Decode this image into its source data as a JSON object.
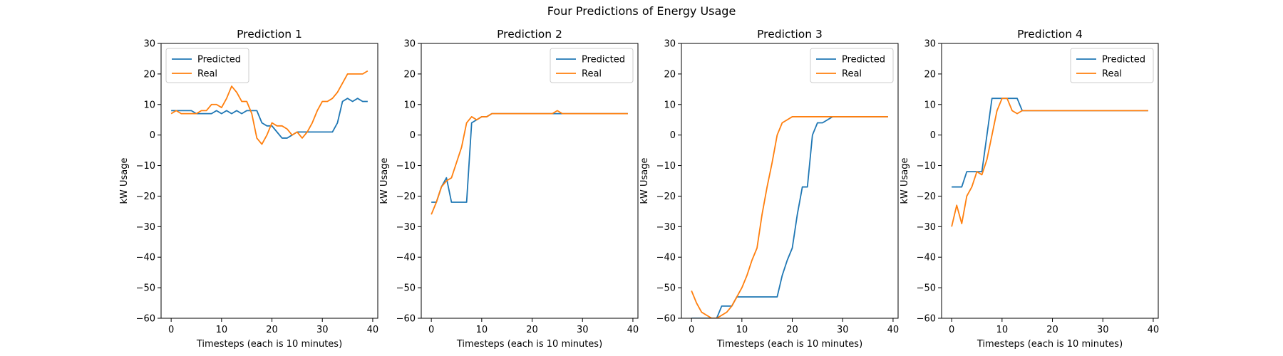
{
  "figure": {
    "title": "Four Predictions of Energy Usage"
  },
  "chart_data": [
    {
      "type": "line",
      "title": "Prediction 1",
      "xlabel": "Timesteps (each is 10 minutes)",
      "ylabel": "kW Usage",
      "xlim": [
        -2,
        41
      ],
      "ylim": [
        -60,
        30
      ],
      "xticks": [
        0,
        10,
        20,
        30,
        40
      ],
      "yticks": [
        -60,
        -50,
        -40,
        -30,
        -20,
        -10,
        0,
        10,
        20,
        30
      ],
      "legend_position": "top-left",
      "series": [
        {
          "name": "Predicted",
          "color": "#1f77b4",
          "x": [
            0,
            1,
            2,
            3,
            4,
            5,
            6,
            7,
            8,
            9,
            10,
            11,
            12,
            13,
            14,
            15,
            16,
            17,
            18,
            19,
            20,
            21,
            22,
            23,
            24,
            25,
            26,
            27,
            28,
            29,
            30,
            31,
            32,
            33,
            34,
            35,
            36,
            37,
            38,
            39
          ],
          "values": [
            8,
            8,
            8,
            8,
            8,
            7,
            7,
            7,
            7,
            8,
            7,
            8,
            7,
            8,
            7,
            8,
            8,
            8,
            4,
            3,
            3,
            1,
            -1,
            -1,
            0,
            1,
            1,
            1,
            1,
            1,
            1,
            1,
            1,
            4,
            11,
            12,
            11,
            12,
            11,
            11
          ]
        },
        {
          "name": "Real",
          "color": "#ff7f0e",
          "x": [
            0,
            1,
            2,
            3,
            4,
            5,
            6,
            7,
            8,
            9,
            10,
            11,
            12,
            13,
            14,
            15,
            16,
            17,
            18,
            19,
            20,
            21,
            22,
            23,
            24,
            25,
            26,
            27,
            28,
            29,
            30,
            31,
            32,
            33,
            34,
            35,
            36,
            37,
            38,
            39
          ],
          "values": [
            7,
            8,
            7,
            7,
            7,
            7,
            8,
            8,
            10,
            10,
            9,
            12,
            16,
            14,
            11,
            11,
            7,
            -1,
            -3,
            0,
            4,
            3,
            3,
            2,
            0,
            1,
            -1,
            1,
            4,
            8,
            11,
            11,
            12,
            14,
            17,
            20,
            20,
            20,
            20,
            21
          ]
        }
      ]
    },
    {
      "type": "line",
      "title": "Prediction 2",
      "xlabel": "Timesteps (each is 10 minutes)",
      "ylabel": "kW Usage",
      "xlim": [
        -2,
        41
      ],
      "ylim": [
        -60,
        30
      ],
      "xticks": [
        0,
        10,
        20,
        30,
        40
      ],
      "yticks": [
        -60,
        -50,
        -40,
        -30,
        -20,
        -10,
        0,
        10,
        20,
        30
      ],
      "legend_position": "top-right",
      "series": [
        {
          "name": "Predicted",
          "color": "#1f77b4",
          "x": [
            0,
            1,
            2,
            3,
            4,
            5,
            6,
            7,
            8,
            9,
            10,
            11,
            12,
            13,
            14,
            15,
            16,
            17,
            18,
            19,
            20,
            21,
            22,
            23,
            24,
            25,
            26,
            27,
            28,
            29,
            30,
            31,
            32,
            33,
            34,
            35,
            36,
            37,
            38,
            39
          ],
          "values": [
            -22,
            -22,
            -17,
            -14,
            -22,
            -22,
            -22,
            -22,
            4,
            5,
            6,
            6,
            7,
            7,
            7,
            7,
            7,
            7,
            7,
            7,
            7,
            7,
            7,
            7,
            7,
            7,
            7,
            7,
            7,
            7,
            7,
            7,
            7,
            7,
            7,
            7,
            7,
            7,
            7,
            7
          ]
        },
        {
          "name": "Real",
          "color": "#ff7f0e",
          "x": [
            0,
            1,
            2,
            3,
            4,
            5,
            6,
            7,
            8,
            9,
            10,
            11,
            12,
            13,
            14,
            15,
            16,
            17,
            18,
            19,
            20,
            21,
            22,
            23,
            24,
            25,
            26,
            27,
            28,
            29,
            30,
            31,
            32,
            33,
            34,
            35,
            36,
            37,
            38,
            39
          ],
          "values": [
            -26,
            -22,
            -17,
            -15,
            -14,
            -9,
            -4,
            4,
            6,
            5,
            6,
            6,
            7,
            7,
            7,
            7,
            7,
            7,
            7,
            7,
            7,
            7,
            7,
            7,
            7,
            8,
            7,
            7,
            7,
            7,
            7,
            7,
            7,
            7,
            7,
            7,
            7,
            7,
            7,
            7
          ]
        }
      ]
    },
    {
      "type": "line",
      "title": "Prediction 3",
      "xlabel": "Timesteps (each is 10 minutes)",
      "ylabel": "kW Usage",
      "xlim": [
        -2,
        41
      ],
      "ylim": [
        -60,
        30
      ],
      "xticks": [
        0,
        10,
        20,
        30,
        40
      ],
      "yticks": [
        -60,
        -50,
        -40,
        -30,
        -20,
        -10,
        0,
        10,
        20,
        30
      ],
      "legend_position": "top-right",
      "series": [
        {
          "name": "Predicted",
          "color": "#1f77b4",
          "x": [
            0,
            1,
            2,
            3,
            4,
            5,
            6,
            7,
            8,
            9,
            10,
            11,
            12,
            13,
            14,
            15,
            16,
            17,
            18,
            19,
            20,
            21,
            22,
            23,
            24,
            25,
            26,
            27,
            28,
            29,
            30,
            31,
            32,
            33,
            34,
            35,
            36,
            37,
            38,
            39
          ],
          "values": [
            -60,
            -60,
            -60,
            -60,
            -60,
            -60,
            -56,
            -56,
            -56,
            -53,
            -53,
            -53,
            -53,
            -53,
            -53,
            -53,
            -53,
            -53,
            -46,
            -41,
            -37,
            -26,
            -17,
            -17,
            0,
            4,
            4,
            5,
            6,
            6,
            6,
            6,
            6,
            6,
            6,
            6,
            6,
            6,
            6,
            6
          ]
        },
        {
          "name": "Real",
          "color": "#ff7f0e",
          "x": [
            0,
            1,
            2,
            3,
            4,
            5,
            6,
            7,
            8,
            9,
            10,
            11,
            12,
            13,
            14,
            15,
            16,
            17,
            18,
            19,
            20,
            21,
            22,
            23,
            24,
            25,
            26,
            27,
            28,
            29,
            30,
            31,
            32,
            33,
            34,
            35,
            36,
            37,
            38,
            39
          ],
          "values": [
            -51,
            -55,
            -58,
            -59,
            -60,
            -60,
            -59,
            -58,
            -56,
            -53,
            -50,
            -46,
            -41,
            -37,
            -26,
            -17,
            -9,
            0,
            4,
            5,
            6,
            6,
            6,
            6,
            6,
            6,
            6,
            6,
            6,
            6,
            6,
            6,
            6,
            6,
            6,
            6,
            6,
            6,
            6,
            6
          ]
        }
      ]
    },
    {
      "type": "line",
      "title": "Prediction 4",
      "xlabel": "Timesteps (each is 10 minutes)",
      "ylabel": "kW Usage",
      "xlim": [
        -2,
        41
      ],
      "ylim": [
        -60,
        30
      ],
      "xticks": [
        0,
        10,
        20,
        30,
        40
      ],
      "yticks": [
        -60,
        -50,
        -40,
        -30,
        -20,
        -10,
        0,
        10,
        20,
        30
      ],
      "legend_position": "top-right",
      "series": [
        {
          "name": "Predicted",
          "color": "#1f77b4",
          "x": [
            0,
            1,
            2,
            3,
            4,
            5,
            6,
            7,
            8,
            9,
            10,
            11,
            12,
            13,
            14,
            15,
            16,
            17,
            18,
            19,
            20,
            21,
            22,
            23,
            24,
            25,
            26,
            27,
            28,
            29,
            30,
            31,
            32,
            33,
            34,
            35,
            36,
            37,
            38,
            39
          ],
          "values": [
            -17,
            -17,
            -17,
            -12,
            -12,
            -12,
            -12,
            0,
            12,
            12,
            12,
            12,
            12,
            12,
            8,
            8,
            8,
            8,
            8,
            8,
            8,
            8,
            8,
            8,
            8,
            8,
            8,
            8,
            8,
            8,
            8,
            8,
            8,
            8,
            8,
            8,
            8,
            8,
            8,
            8
          ]
        },
        {
          "name": "Real",
          "color": "#ff7f0e",
          "x": [
            0,
            1,
            2,
            3,
            4,
            5,
            6,
            7,
            8,
            9,
            10,
            11,
            12,
            13,
            14,
            15,
            16,
            17,
            18,
            19,
            20,
            21,
            22,
            23,
            24,
            25,
            26,
            27,
            28,
            29,
            30,
            31,
            32,
            33,
            34,
            35,
            36,
            37,
            38,
            39
          ],
          "values": [
            -30,
            -23,
            -29,
            -20,
            -17,
            -12,
            -13,
            -8,
            0,
            8,
            12,
            12,
            8,
            7,
            8,
            8,
            8,
            8,
            8,
            8,
            8,
            8,
            8,
            8,
            8,
            8,
            8,
            8,
            8,
            8,
            8,
            8,
            8,
            8,
            8,
            8,
            8,
            8,
            8,
            8
          ]
        }
      ]
    }
  ]
}
